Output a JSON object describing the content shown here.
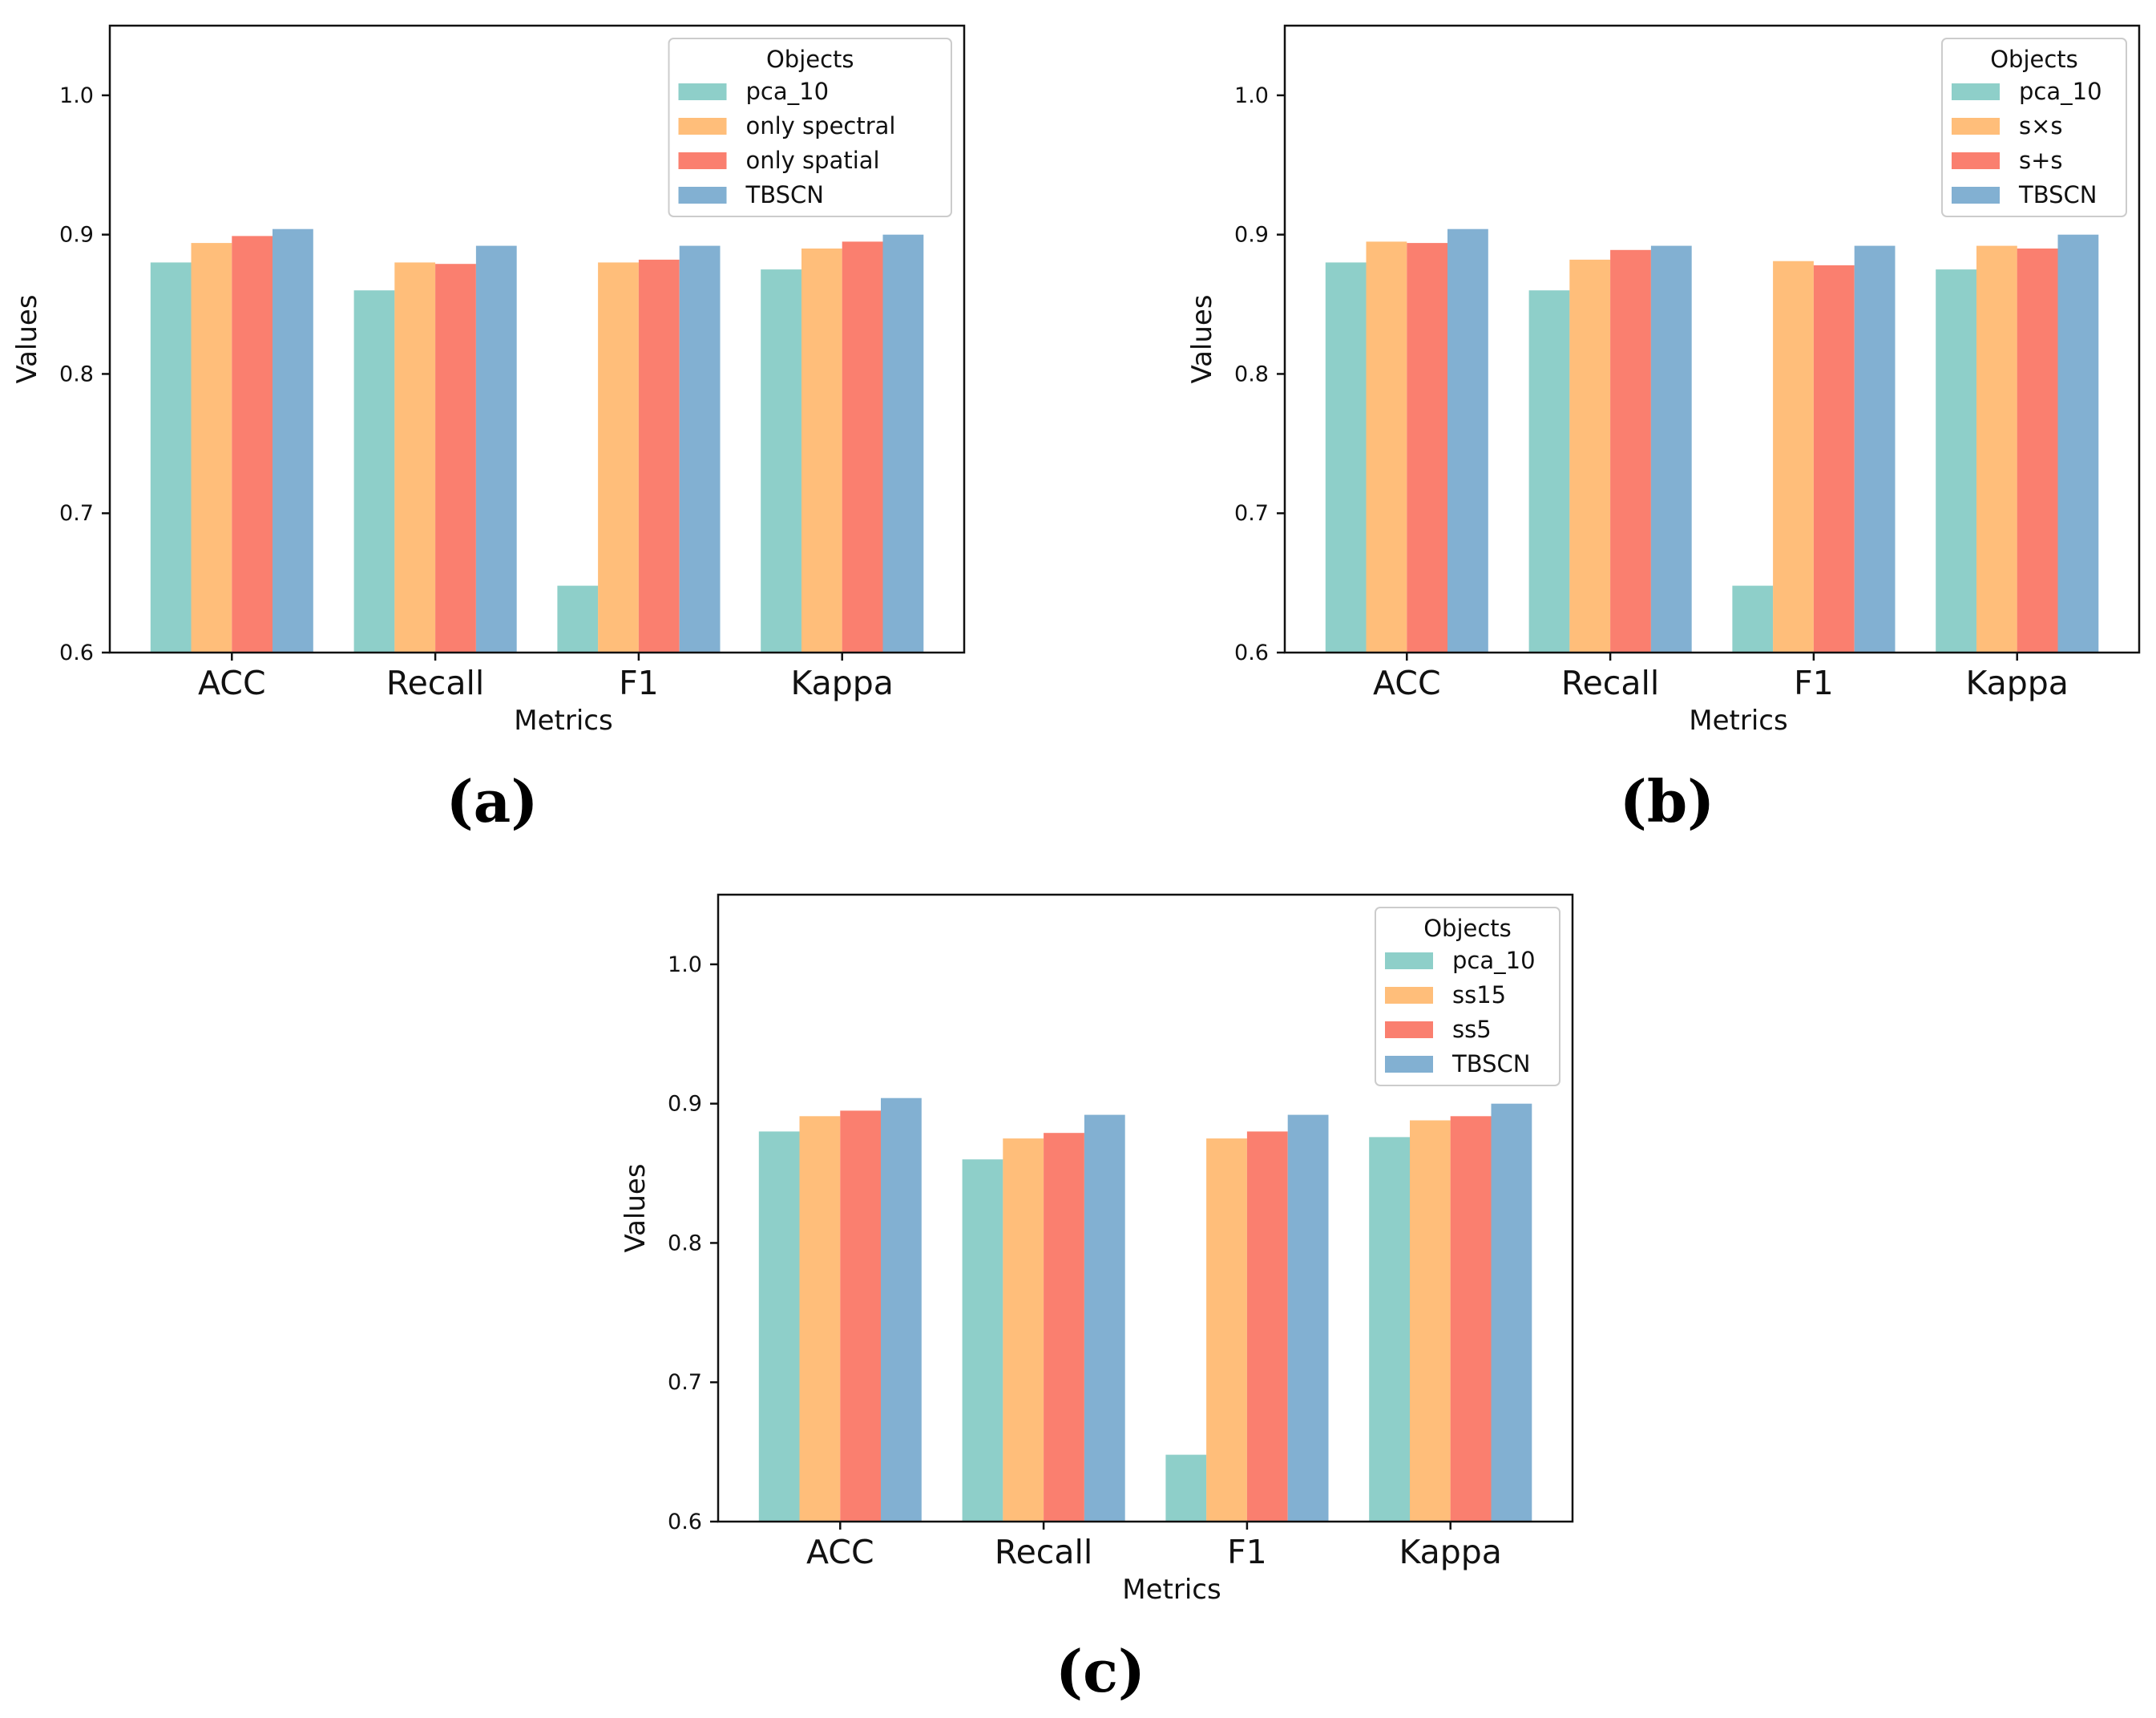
{
  "chart_data": [
    {
      "type": "bar",
      "panel_label": "(a)",
      "categories": [
        "ACC",
        "Recall",
        "F1",
        "Kappa"
      ],
      "xlabel": "Metrics",
      "ylabel": "Values",
      "ylim": [
        0.6,
        1.05
      ],
      "yticks": [
        "0.6",
        "0.7",
        "0.8",
        "0.9",
        "1.0"
      ],
      "grid": false,
      "legend_title": "Objects",
      "legend_position": "upper right",
      "series": [
        {
          "name": "pca_10",
          "color": "#8ecfc9",
          "values": [
            0.88,
            0.86,
            0.648,
            0.875
          ]
        },
        {
          "name": "only spectral",
          "color": "#ffbe7a",
          "values": [
            0.894,
            0.88,
            0.88,
            0.89
          ]
        },
        {
          "name": "only spatial",
          "color": "#fa7f6f",
          "values": [
            0.899,
            0.879,
            0.882,
            0.895
          ]
        },
        {
          "name": "TBSCN",
          "color": "#82b0d2",
          "values": [
            0.904,
            0.892,
            0.892,
            0.9
          ]
        }
      ]
    },
    {
      "type": "bar",
      "panel_label": "(b)",
      "categories": [
        "ACC",
        "Recall",
        "F1",
        "Kappa"
      ],
      "xlabel": "Metrics",
      "ylabel": "Values",
      "ylim": [
        0.6,
        1.05
      ],
      "yticks": [
        "0.6",
        "0.7",
        "0.8",
        "0.9",
        "1.0"
      ],
      "grid": false,
      "legend_title": "Objects",
      "legend_position": "upper right",
      "series": [
        {
          "name": "pca_10",
          "color": "#8ecfc9",
          "values": [
            0.88,
            0.86,
            0.648,
            0.875
          ]
        },
        {
          "name": "s×s",
          "color": "#ffbe7a",
          "values": [
            0.895,
            0.882,
            0.881,
            0.892
          ]
        },
        {
          "name": "s+s",
          "color": "#fa7f6f",
          "values": [
            0.894,
            0.889,
            0.878,
            0.89
          ]
        },
        {
          "name": "TBSCN",
          "color": "#82b0d2",
          "values": [
            0.904,
            0.892,
            0.892,
            0.9
          ]
        }
      ]
    },
    {
      "type": "bar",
      "panel_label": "(c)",
      "categories": [
        "ACC",
        "Recall",
        "F1",
        "Kappa"
      ],
      "xlabel": "Metrics",
      "ylabel": "Values",
      "ylim": [
        0.6,
        1.05
      ],
      "yticks": [
        "0.6",
        "0.7",
        "0.8",
        "0.9",
        "1.0"
      ],
      "grid": false,
      "legend_title": "Objects",
      "legend_position": "upper right",
      "series": [
        {
          "name": "pca_10",
          "color": "#8ecfc9",
          "values": [
            0.88,
            0.86,
            0.648,
            0.876
          ]
        },
        {
          "name": "ss15",
          "color": "#ffbe7a",
          "values": [
            0.891,
            0.875,
            0.875,
            0.888
          ]
        },
        {
          "name": "ss5",
          "color": "#fa7f6f",
          "values": [
            0.895,
            0.879,
            0.88,
            0.891
          ]
        },
        {
          "name": "TBSCN",
          "color": "#82b0d2",
          "values": [
            0.904,
            0.892,
            0.892,
            0.9
          ]
        }
      ]
    }
  ]
}
